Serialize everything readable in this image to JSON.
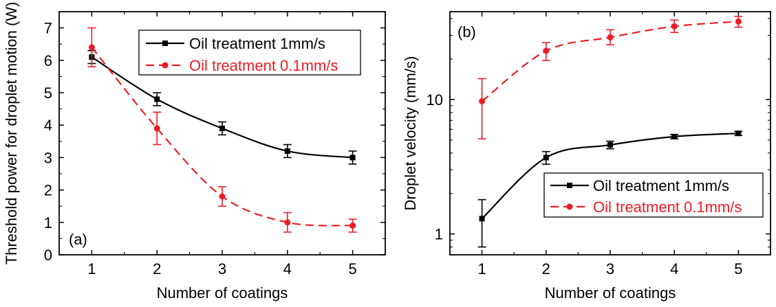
{
  "chart_data": [
    {
      "type": "line",
      "panel_label": "(a)",
      "xlabel": "Number of coatings",
      "ylabel": "Threshold power for droplet motion (W)",
      "xlim": [
        0.5,
        5.5
      ],
      "ylim": [
        0,
        7.5
      ],
      "yscale": "linear",
      "xticks": [
        1,
        2,
        3,
        4,
        5
      ],
      "yticks": [
        0,
        1,
        2,
        3,
        4,
        5,
        6,
        7
      ],
      "grid": false,
      "legend_position": "top-right",
      "x": [
        1,
        2,
        3,
        4,
        5
      ],
      "series": [
        {
          "name": "Oil treatment 1mm/s",
          "values": [
            6.1,
            4.8,
            3.9,
            3.2,
            3.0
          ],
          "errors": [
            0.2,
            0.2,
            0.2,
            0.2,
            0.2
          ],
          "color": "#000000",
          "line_style": "solid",
          "marker": "square"
        },
        {
          "name": "Oil treatment 0.1mm/s",
          "values": [
            6.4,
            3.9,
            1.8,
            1.0,
            0.9
          ],
          "errors": [
            0.6,
            0.5,
            0.3,
            0.3,
            0.2
          ],
          "color": "#ee1c24",
          "line_style": "dashed",
          "marker": "circle"
        }
      ]
    },
    {
      "type": "line",
      "panel_label": "(b)",
      "xlabel": "Number of coatings",
      "ylabel": "Droplet  velocity (mm/s)",
      "xlim": [
        0.5,
        5.5
      ],
      "ylim": [
        0.7,
        45
      ],
      "yscale": "log",
      "xticks": [
        1,
        2,
        3,
        4,
        5
      ],
      "yticks": [
        1,
        10
      ],
      "grid": false,
      "legend_position": "bottom-right",
      "x": [
        1,
        2,
        3,
        4,
        5
      ],
      "series": [
        {
          "name": "Oil treatment 1mm/s",
          "values": [
            1.3,
            3.7,
            4.6,
            5.3,
            5.6
          ],
          "err_low": [
            0.8,
            3.3,
            4.3,
            5.1,
            5.4
          ],
          "err_high": [
            1.8,
            4.1,
            4.9,
            5.5,
            5.8
          ],
          "color": "#000000",
          "line_style": "solid",
          "marker": "square"
        },
        {
          "name": "Oil treatment 0.1mm/s",
          "values": [
            9.7,
            23,
            29,
            35,
            38
          ],
          "err_low": [
            5.1,
            19.5,
            25.5,
            31.5,
            34.5
          ],
          "err_high": [
            14.3,
            26.5,
            33,
            39,
            41.5
          ],
          "color": "#ee1c24",
          "line_style": "dashed",
          "marker": "circle"
        }
      ]
    }
  ]
}
